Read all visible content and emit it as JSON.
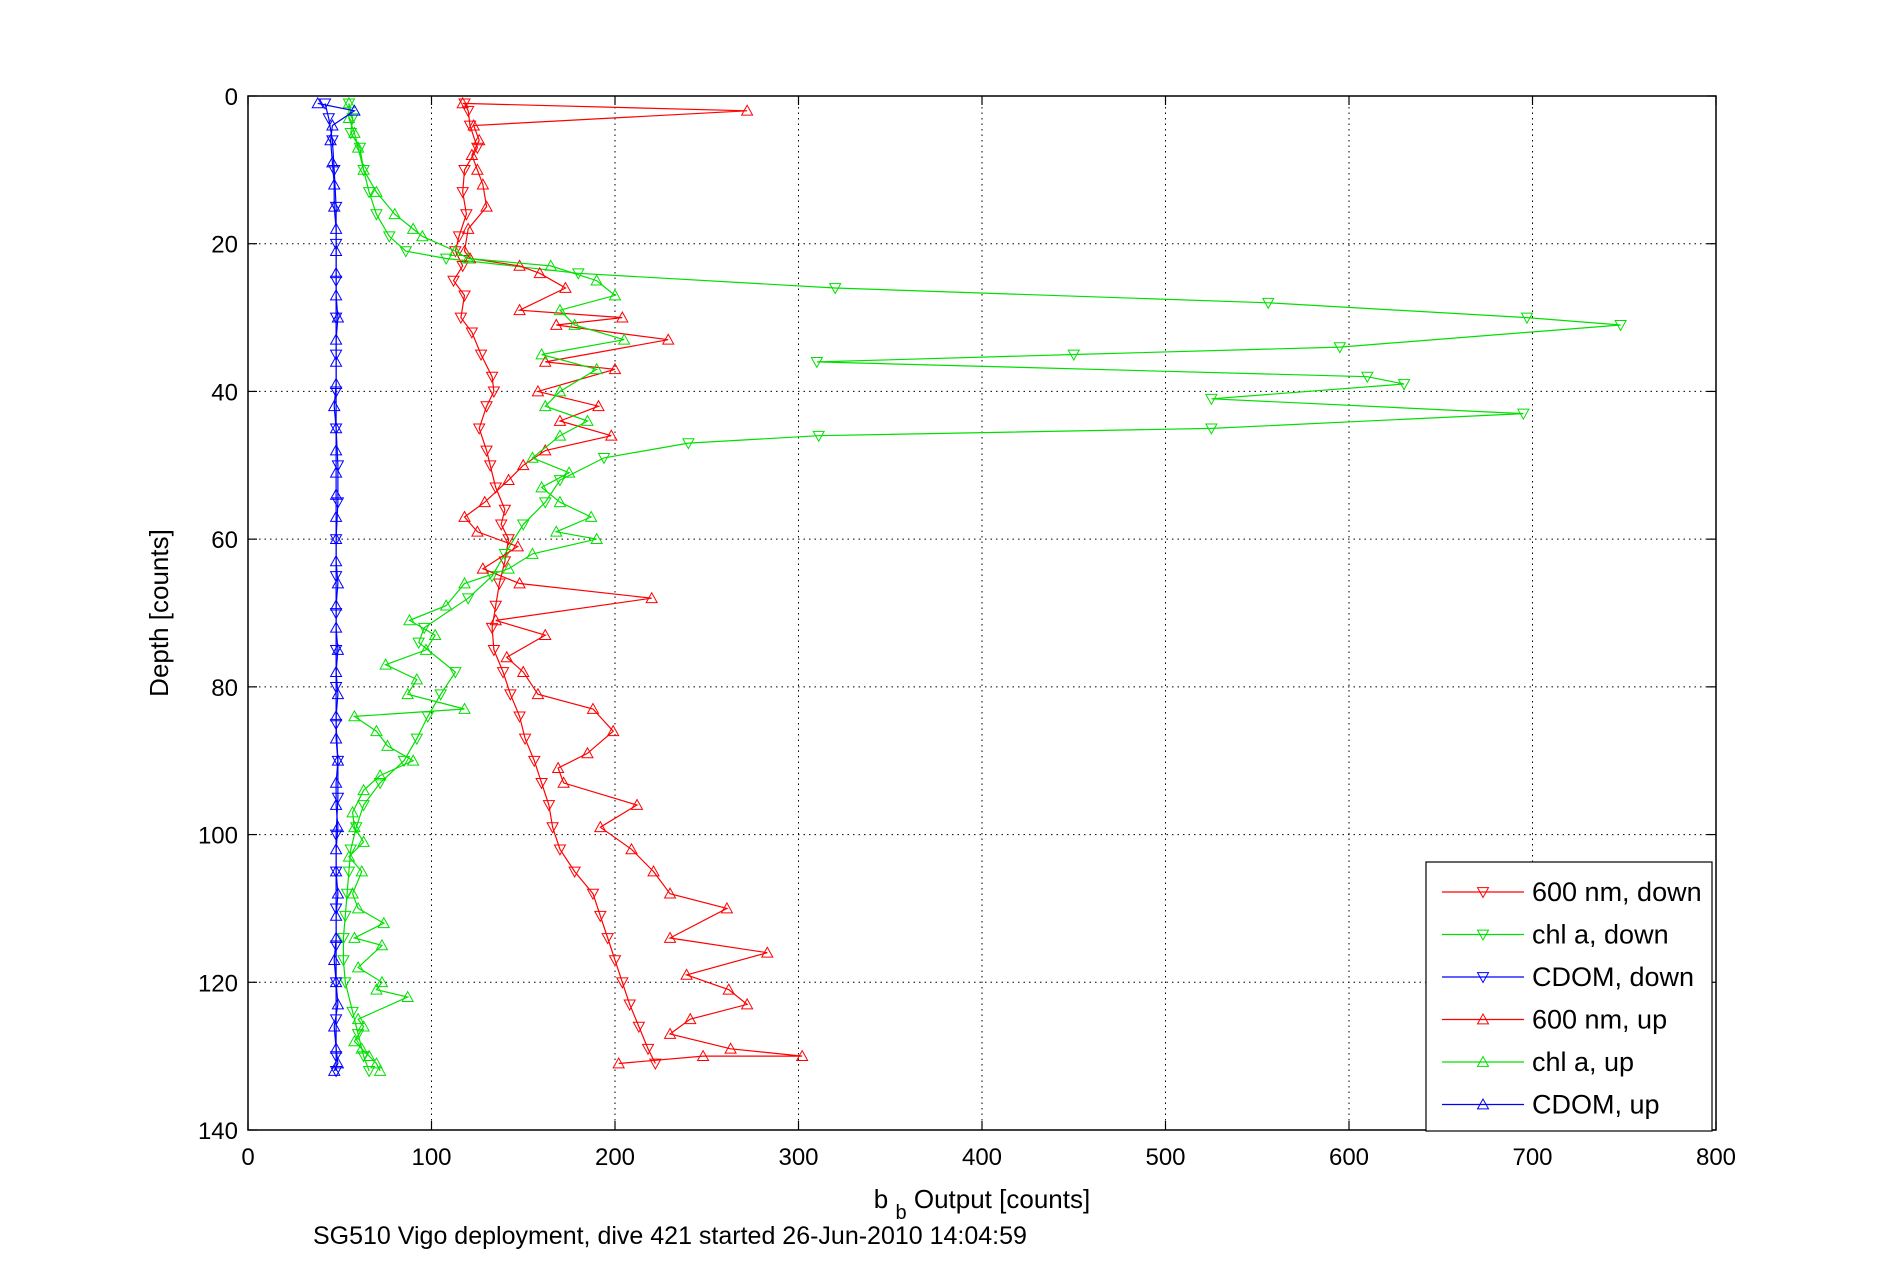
{
  "chart_data": {
    "type": "line",
    "caption": "SG510 Vigo deployment, dive 421 started 26-Jun-2010 14:04:59",
    "xlabel_main": "b",
    "xlabel_sub": "b",
    "xlabel_rest": " Output [counts]",
    "ylabel": "Depth [counts]",
    "xlim": [
      0,
      800
    ],
    "ylim": [
      0,
      140
    ],
    "y_reversed": true,
    "x_ticks": [
      0,
      100,
      200,
      300,
      400,
      500,
      600,
      700,
      800
    ],
    "y_ticks": [
      0,
      20,
      40,
      60,
      80,
      100,
      120,
      140
    ],
    "grid": true,
    "legend_position": "bottom-right",
    "series": [
      {
        "name": "600 nm, down",
        "color": "#ff0000",
        "marker": "triangle-down",
        "points": [
          [
            118,
            1
          ],
          [
            120,
            2
          ],
          [
            121,
            4
          ],
          [
            125,
            7
          ],
          [
            118,
            10
          ],
          [
            117,
            13
          ],
          [
            119,
            16
          ],
          [
            115,
            19
          ],
          [
            113,
            21
          ],
          [
            117,
            23
          ],
          [
            112,
            25
          ],
          [
            118,
            27
          ],
          [
            116,
            30
          ],
          [
            122,
            32
          ],
          [
            127,
            35
          ],
          [
            133,
            38
          ],
          [
            134,
            40
          ],
          [
            130,
            42
          ],
          [
            126,
            45
          ],
          [
            130,
            48
          ],
          [
            132,
            50
          ],
          [
            135,
            53
          ],
          [
            140,
            56
          ],
          [
            138,
            58
          ],
          [
            142,
            60
          ],
          [
            140,
            63
          ],
          [
            137,
            66
          ],
          [
            135,
            69
          ],
          [
            133,
            72
          ],
          [
            134,
            75
          ],
          [
            139,
            78
          ],
          [
            143,
            81
          ],
          [
            148,
            84
          ],
          [
            151,
            87
          ],
          [
            156,
            90
          ],
          [
            160,
            93
          ],
          [
            164,
            96
          ],
          [
            166,
            99
          ],
          [
            170,
            102
          ],
          [
            178,
            105
          ],
          [
            188,
            108
          ],
          [
            192,
            111
          ],
          [
            196,
            114
          ],
          [
            200,
            117
          ],
          [
            204,
            120
          ],
          [
            208,
            123
          ],
          [
            213,
            126
          ],
          [
            218,
            129
          ],
          [
            222,
            131
          ]
        ]
      },
      {
        "name": "chl a, down",
        "color": "#00e000",
        "marker": "triangle-down",
        "points": [
          [
            55,
            1
          ],
          [
            57,
            3
          ],
          [
            56,
            5
          ],
          [
            61,
            7
          ],
          [
            63,
            10
          ],
          [
            66,
            13
          ],
          [
            70,
            16
          ],
          [
            77,
            19
          ],
          [
            86,
            21
          ],
          [
            108,
            22
          ],
          [
            180,
            24
          ],
          [
            320,
            26
          ],
          [
            556,
            28
          ],
          [
            697,
            30
          ],
          [
            748,
            31
          ],
          [
            595,
            34
          ],
          [
            450,
            35
          ],
          [
            310,
            36
          ],
          [
            610,
            38
          ],
          [
            630,
            39
          ],
          [
            525,
            41
          ],
          [
            695,
            43
          ],
          [
            525,
            45
          ],
          [
            311,
            46
          ],
          [
            240,
            47
          ],
          [
            194,
            49
          ],
          [
            170,
            52
          ],
          [
            162,
            55
          ],
          [
            150,
            58
          ],
          [
            140,
            62
          ],
          [
            133,
            65
          ],
          [
            120,
            68
          ],
          [
            96,
            72
          ],
          [
            93,
            74
          ],
          [
            113,
            78
          ],
          [
            105,
            81
          ],
          [
            98,
            84
          ],
          [
            92,
            87
          ],
          [
            85,
            90
          ],
          [
            72,
            93
          ],
          [
            63,
            96
          ],
          [
            59,
            99
          ],
          [
            56,
            102
          ],
          [
            55,
            105
          ],
          [
            54,
            108
          ],
          [
            53,
            111
          ],
          [
            52,
            114
          ],
          [
            52,
            117
          ],
          [
            53,
            120
          ],
          [
            57,
            124
          ],
          [
            60,
            127
          ],
          [
            63,
            130
          ],
          [
            66,
            132
          ]
        ]
      },
      {
        "name": "CDOM, down",
        "color": "#0000ff",
        "marker": "triangle-down",
        "points": [
          [
            42,
            1
          ],
          [
            44,
            3
          ],
          [
            46,
            6
          ],
          [
            47,
            10
          ],
          [
            48,
            15
          ],
          [
            48,
            20
          ],
          [
            48,
            25
          ],
          [
            48,
            30
          ],
          [
            48,
            35
          ],
          [
            48,
            40
          ],
          [
            48,
            45
          ],
          [
            49,
            50
          ],
          [
            49,
            55
          ],
          [
            48,
            60
          ],
          [
            48,
            65
          ],
          [
            48,
            70
          ],
          [
            48,
            75
          ],
          [
            48,
            80
          ],
          [
            48,
            85
          ],
          [
            49,
            90
          ],
          [
            49,
            95
          ],
          [
            48,
            100
          ],
          [
            48,
            105
          ],
          [
            48,
            110
          ],
          [
            48,
            115
          ],
          [
            48,
            120
          ],
          [
            48,
            125
          ],
          [
            48,
            130
          ],
          [
            48,
            132
          ]
        ]
      },
      {
        "name": "600 nm, up",
        "color": "#ff0000",
        "marker": "triangle-up",
        "points": [
          [
            202,
            131
          ],
          [
            248,
            130
          ],
          [
            302,
            130
          ],
          [
            263,
            129
          ],
          [
            230,
            127
          ],
          [
            241,
            125
          ],
          [
            272,
            123
          ],
          [
            262,
            121
          ],
          [
            239,
            119
          ],
          [
            283,
            116
          ],
          [
            230,
            114
          ],
          [
            261,
            110
          ],
          [
            230,
            108
          ],
          [
            221,
            105
          ],
          [
            209,
            102
          ],
          [
            192,
            99
          ],
          [
            212,
            96
          ],
          [
            172,
            93
          ],
          [
            169,
            91
          ],
          [
            185,
            89
          ],
          [
            199,
            86
          ],
          [
            188,
            83
          ],
          [
            158,
            81
          ],
          [
            150,
            78
          ],
          [
            141,
            76
          ],
          [
            162,
            73
          ],
          [
            135,
            71
          ],
          [
            220,
            68
          ],
          [
            148,
            66
          ],
          [
            128,
            64
          ],
          [
            147,
            61
          ],
          [
            125,
            59
          ],
          [
            118,
            57
          ],
          [
            129,
            55
          ],
          [
            142,
            52
          ],
          [
            150,
            50
          ],
          [
            162,
            48
          ],
          [
            198,
            46
          ],
          [
            170,
            44
          ],
          [
            191,
            42
          ],
          [
            158,
            40
          ],
          [
            200,
            37
          ],
          [
            162,
            36
          ],
          [
            229,
            33
          ],
          [
            168,
            31
          ],
          [
            204,
            30
          ],
          [
            148,
            29
          ],
          [
            173,
            26
          ],
          [
            159,
            24
          ],
          [
            148,
            23
          ],
          [
            121,
            22
          ],
          [
            118,
            21
          ],
          [
            120,
            18
          ],
          [
            130,
            15
          ],
          [
            128,
            12
          ],
          [
            125,
            10
          ],
          [
            122,
            8
          ],
          [
            126,
            6
          ],
          [
            123,
            4
          ],
          [
            272,
            2
          ],
          [
            117,
            1
          ]
        ]
      },
      {
        "name": "chl a, up",
        "color": "#00e000",
        "marker": "triangle-up",
        "points": [
          [
            72,
            132
          ],
          [
            70,
            131
          ],
          [
            66,
            130
          ],
          [
            62,
            129
          ],
          [
            58,
            128
          ],
          [
            63,
            126
          ],
          [
            60,
            125
          ],
          [
            87,
            122
          ],
          [
            70,
            121
          ],
          [
            73,
            120
          ],
          [
            60,
            118
          ],
          [
            73,
            115
          ],
          [
            58,
            114
          ],
          [
            74,
            112
          ],
          [
            60,
            110
          ],
          [
            57,
            108
          ],
          [
            62,
            105
          ],
          [
            55,
            103
          ],
          [
            63,
            101
          ],
          [
            58,
            99
          ],
          [
            57,
            97
          ],
          [
            63,
            94
          ],
          [
            72,
            92
          ],
          [
            90,
            90
          ],
          [
            76,
            88
          ],
          [
            70,
            86
          ],
          [
            58,
            84
          ],
          [
            118,
            83
          ],
          [
            87,
            81
          ],
          [
            92,
            79
          ],
          [
            75,
            77
          ],
          [
            97,
            75
          ],
          [
            102,
            73
          ],
          [
            88,
            71
          ],
          [
            108,
            69
          ],
          [
            118,
            66
          ],
          [
            142,
            64
          ],
          [
            155,
            62
          ],
          [
            190,
            60
          ],
          [
            168,
            59
          ],
          [
            187,
            57
          ],
          [
            170,
            55
          ],
          [
            160,
            53
          ],
          [
            175,
            51
          ],
          [
            155,
            49
          ],
          [
            170,
            46
          ],
          [
            185,
            44
          ],
          [
            162,
            42
          ],
          [
            170,
            40
          ],
          [
            190,
            37
          ],
          [
            160,
            35
          ],
          [
            205,
            33
          ],
          [
            178,
            31
          ],
          [
            170,
            29
          ],
          [
            200,
            27
          ],
          [
            190,
            25
          ],
          [
            165,
            23
          ],
          [
            120,
            22
          ],
          [
            113,
            21
          ],
          [
            95,
            19
          ],
          [
            90,
            18
          ],
          [
            80,
            16
          ],
          [
            70,
            13
          ],
          [
            63,
            10
          ],
          [
            60,
            7
          ],
          [
            58,
            5
          ],
          [
            55,
            3
          ],
          [
            55,
            1
          ]
        ]
      },
      {
        "name": "CDOM, up",
        "color": "#0000ff",
        "marker": "triangle-up",
        "points": [
          [
            47,
            132
          ],
          [
            49,
            131
          ],
          [
            48,
            129
          ],
          [
            47,
            126
          ],
          [
            49,
            123
          ],
          [
            48,
            120
          ],
          [
            47,
            117
          ],
          [
            48,
            114
          ],
          [
            48,
            111
          ],
          [
            49,
            108
          ],
          [
            48,
            105
          ],
          [
            48,
            102
          ],
          [
            49,
            99
          ],
          [
            48,
            96
          ],
          [
            48,
            93
          ],
          [
            49,
            90
          ],
          [
            48,
            87
          ],
          [
            48,
            84
          ],
          [
            49,
            81
          ],
          [
            48,
            78
          ],
          [
            49,
            75
          ],
          [
            48,
            72
          ],
          [
            48,
            69
          ],
          [
            49,
            66
          ],
          [
            48,
            63
          ],
          [
            48,
            60
          ],
          [
            48,
            57
          ],
          [
            48,
            54
          ],
          [
            48,
            51
          ],
          [
            48,
            48
          ],
          [
            48,
            45
          ],
          [
            47,
            42
          ],
          [
            48,
            39
          ],
          [
            48,
            36
          ],
          [
            48,
            33
          ],
          [
            49,
            30
          ],
          [
            48,
            27
          ],
          [
            48,
            24
          ],
          [
            48,
            21
          ],
          [
            48,
            18
          ],
          [
            47,
            15
          ],
          [
            47,
            12
          ],
          [
            46,
            9
          ],
          [
            45,
            6
          ],
          [
            46,
            4
          ],
          [
            58,
            2
          ],
          [
            38,
            1
          ]
        ]
      }
    ]
  }
}
